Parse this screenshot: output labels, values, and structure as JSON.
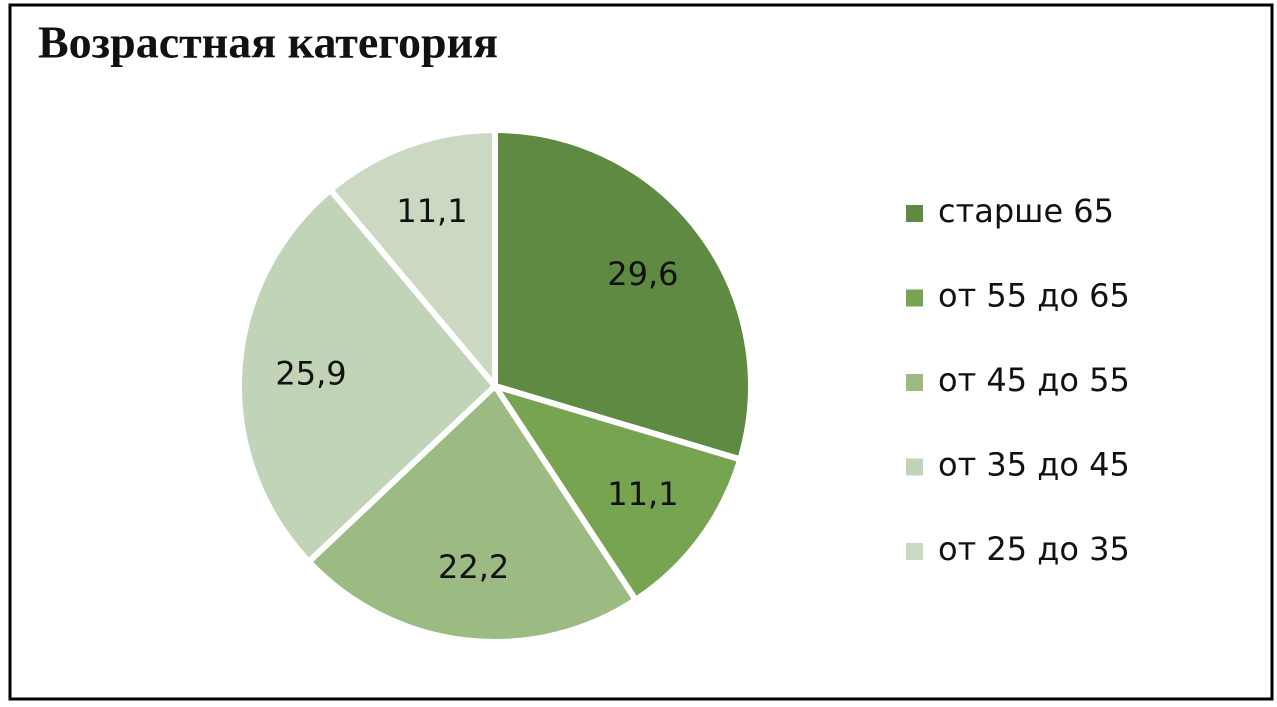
{
  "chart_data": {
    "type": "pie",
    "title": "Возрастная категория",
    "categories": [
      "старше 65",
      "от 55 до 65",
      "от 45 до 55",
      "от 35 до 45",
      "от 25 до 35"
    ],
    "values": [
      29.6,
      11.1,
      22.2,
      25.9,
      11.1
    ],
    "value_labels": [
      "29,6",
      "11,1",
      "22,2",
      "25,9",
      "11,1"
    ],
    "colors": [
      "#5f8a41",
      "#76a450",
      "#9bbb82",
      "#c2d4b7",
      "#cbd9c3"
    ],
    "legend": "right"
  }
}
